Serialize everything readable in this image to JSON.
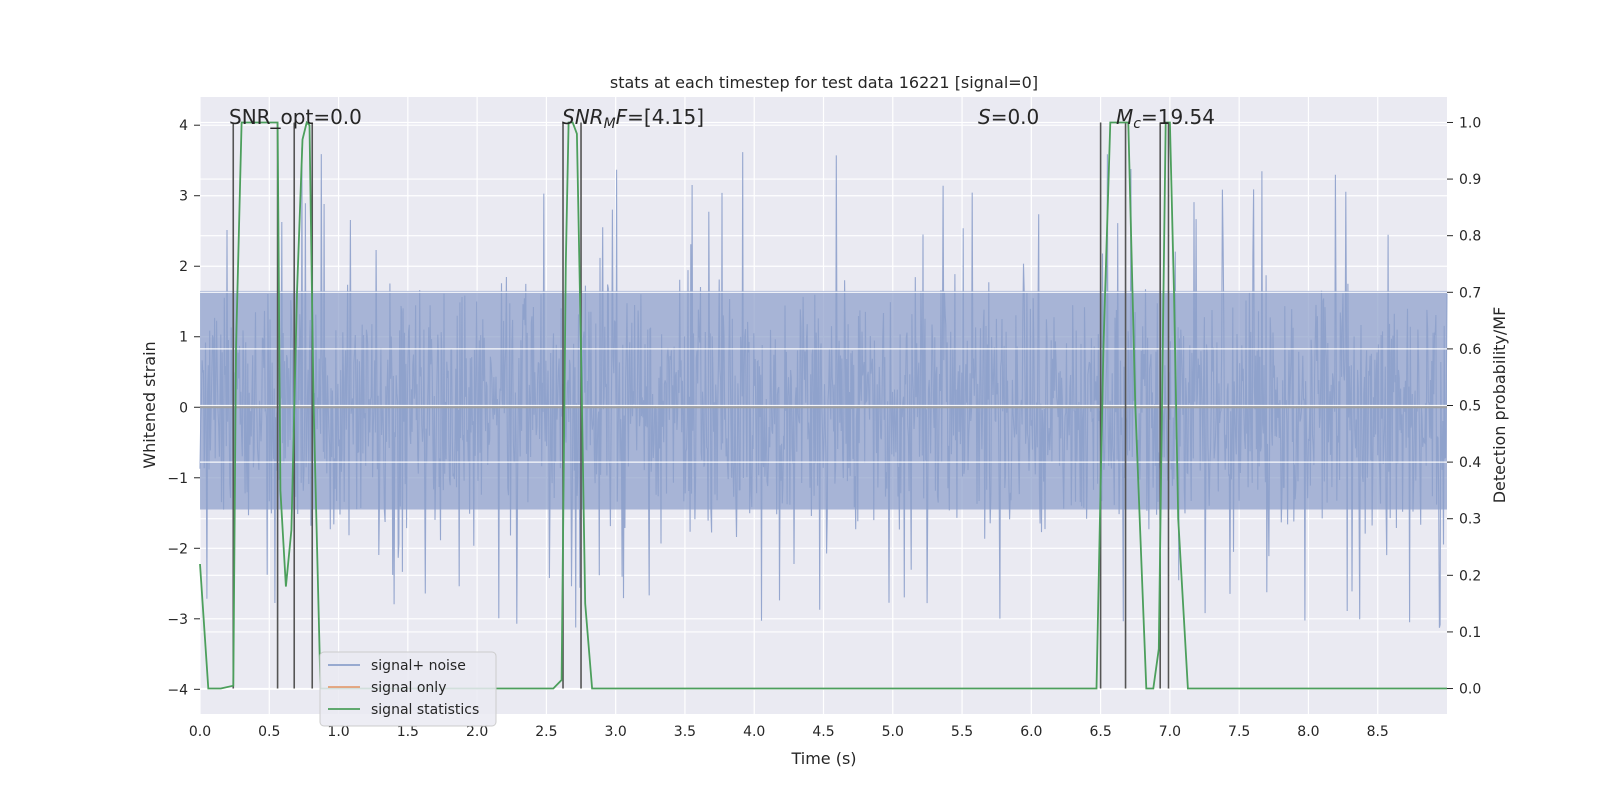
{
  "chart_data": {
    "type": "line",
    "title": "stats at each timestep for test data 16221 [signal=0]",
    "xlabel": "Time (s)",
    "ylabel_left": "Whitened strain",
    "ylabel_right": "Detection probability/MF",
    "xlim": [
      0.0,
      9.0
    ],
    "ylim_left": [
      -4.35,
      4.4
    ],
    "ylim_right": [
      -0.045,
      1.045
    ],
    "xticks": [
      "0.0",
      "0.5",
      "1.0",
      "1.5",
      "2.0",
      "2.5",
      "3.0",
      "3.5",
      "4.0",
      "4.5",
      "5.0",
      "5.5",
      "6.0",
      "6.5",
      "7.0",
      "7.5",
      "8.0",
      "8.5"
    ],
    "yticks_left": [
      "-4",
      "-3",
      "-2",
      "-1",
      "0",
      "1",
      "2",
      "3",
      "4"
    ],
    "yticks_right": [
      "0.0",
      "0.1",
      "0.2",
      "0.3",
      "0.4",
      "0.5",
      "0.6",
      "0.7",
      "0.8",
      "0.9",
      "1.0"
    ],
    "grid": true,
    "legend_position": "lower-left",
    "legend": [
      {
        "label": "signal+ noise",
        "color": "#8da0cb"
      },
      {
        "label": "signal only",
        "color": "#e39e74"
      },
      {
        "label": "signal statistics",
        "color": "#4c9f5c"
      }
    ],
    "annotations": {
      "snr_opt": "SNR_opt=0.0",
      "snr_mf_italic": "SNR",
      "snr_mf_sub": "M",
      "snr_mf_italic2": "F",
      "snr_mf_value": "=[4.15]",
      "s_italic": "S",
      "s_value": "=0.0",
      "mc_italic": "M",
      "mc_sub": "c",
      "mc_value": "=19.54"
    },
    "noise_series": {
      "name": "signal+ noise",
      "color": "#8da0cb",
      "x_range": [
        0.0,
        9.0
      ],
      "n_points": 1800,
      "core_amplitude": [
        -1.45,
        1.65
      ],
      "peak_max": 4.0,
      "peak_min": -3.65
    },
    "signal_only": {
      "name": "signal only",
      "color": "#e39e74",
      "value": 0.0
    },
    "statistics_series": {
      "name": "signal statistics",
      "color": "#4c9f5c",
      "x": [
        0.0,
        0.06,
        0.15,
        0.24,
        0.26,
        0.3,
        0.56,
        0.58,
        0.62,
        0.66,
        0.7,
        0.74,
        0.77,
        0.79,
        0.82,
        0.87,
        0.9,
        2.55,
        2.61,
        2.64,
        2.66,
        2.69,
        2.72,
        2.75,
        2.78,
        2.83,
        6.42,
        6.47,
        6.52,
        6.57,
        6.7,
        6.75,
        6.83,
        6.88,
        6.92,
        6.97,
        7.0,
        7.03,
        7.06,
        7.13,
        9.0
      ],
      "y": [
        0.22,
        0.0,
        0.0,
        0.005,
        0.6,
        1.0,
        1.0,
        0.35,
        0.18,
        0.28,
        0.7,
        0.97,
        1.0,
        0.995,
        0.5,
        0.0,
        0.0,
        0.0,
        0.015,
        0.75,
        1.0,
        1.0,
        0.98,
        0.6,
        0.15,
        0.0,
        0.0,
        0.0,
        0.6,
        1.0,
        1.0,
        0.5,
        0.0,
        0.0,
        0.07,
        1.0,
        1.0,
        0.7,
        0.3,
        0.0,
        0.0
      ]
    },
    "vertical_lines_x": [
      0.24,
      0.56,
      0.68,
      0.81,
      2.62,
      2.75,
      6.5,
      6.68,
      6.93,
      6.99
    ]
  }
}
